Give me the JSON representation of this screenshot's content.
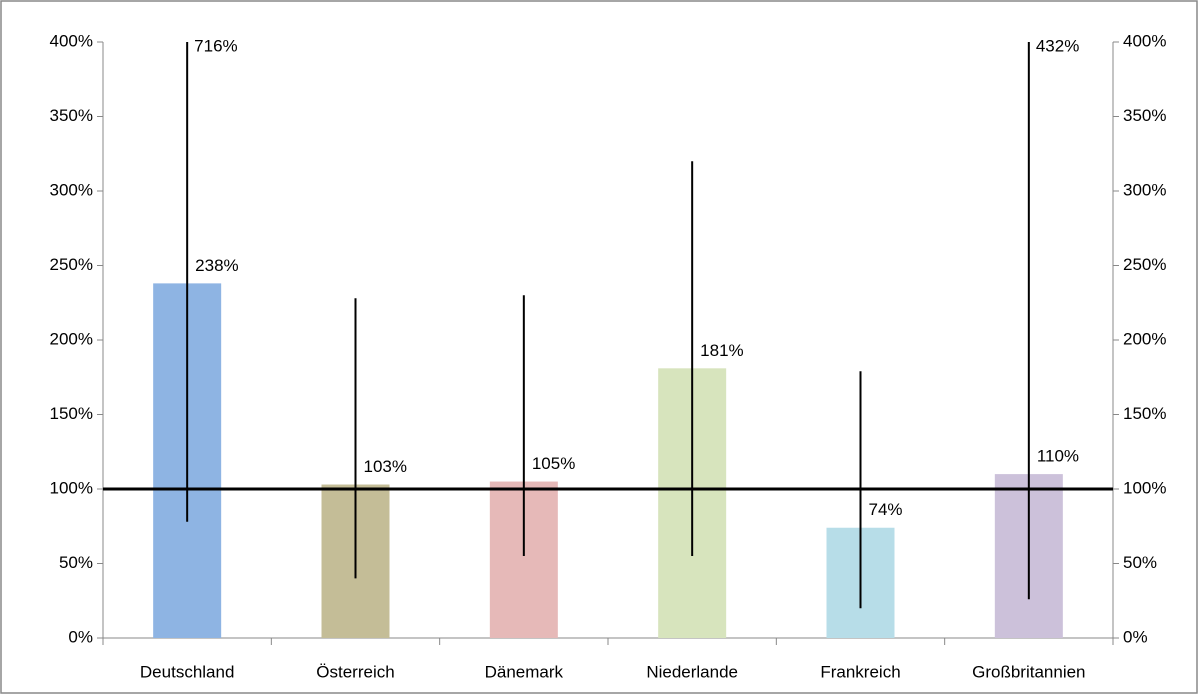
{
  "chart_data": {
    "type": "bar",
    "categories": [
      "Deutschland",
      "Österreich",
      "Dänemark",
      "Niederlande",
      "Frankreich",
      "Großbritannien"
    ],
    "values": [
      238,
      103,
      105,
      181,
      74,
      110
    ],
    "value_labels": [
      "238%",
      "103%",
      "105%",
      "181%",
      "74%",
      "110%"
    ],
    "colors": [
      "#8eb4e3",
      "#c4bd97",
      "#e6b9b8",
      "#d7e4bd",
      "#b7dde8",
      "#ccc1da"
    ],
    "error_low": [
      78,
      40,
      55,
      55,
      20,
      26
    ],
    "error_high": [
      716,
      228,
      230,
      320,
      179,
      432
    ],
    "error_high_labels": [
      "716%",
      null,
      null,
      null,
      null,
      "432%"
    ],
    "reference_line": 100,
    "ylim": [
      0,
      400
    ],
    "yticks": [
      {
        "value": 0,
        "label": "0%"
      },
      {
        "value": 50,
        "label": "50%"
      },
      {
        "value": 100,
        "label": "100%"
      },
      {
        "value": 150,
        "label": "150%"
      },
      {
        "value": 200,
        "label": "200%"
      },
      {
        "value": 250,
        "label": "250%"
      },
      {
        "value": 300,
        "label": "300%"
      },
      {
        "value": 350,
        "label": "350%"
      },
      {
        "value": 400,
        "label": "400%"
      }
    ],
    "y2lim": [
      0,
      400
    ],
    "y2ticks": [
      {
        "value": 0,
        "label": "0%"
      },
      {
        "value": 50,
        "label": "50%"
      },
      {
        "value": 100,
        "label": "100%"
      },
      {
        "value": 150,
        "label": "150%"
      },
      {
        "value": 200,
        "label": "200%"
      },
      {
        "value": 250,
        "label": "250%"
      },
      {
        "value": 300,
        "label": "300%"
      },
      {
        "value": 350,
        "label": "350%"
      },
      {
        "value": 400,
        "label": "400%"
      }
    ],
    "grid": false
  }
}
